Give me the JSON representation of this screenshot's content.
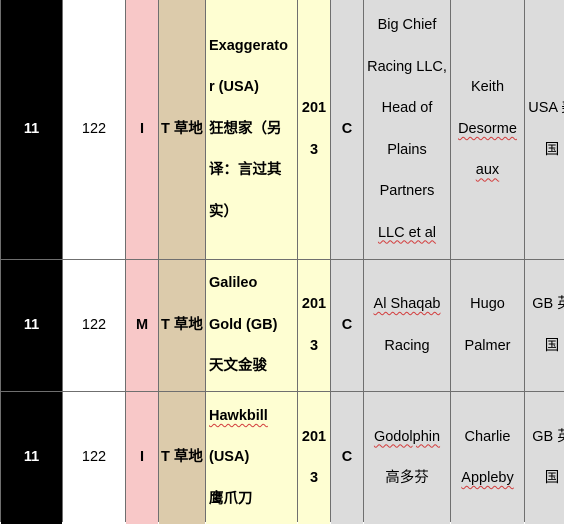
{
  "rows": [
    {
      "rank": "11",
      "rating": "122",
      "class_code": "I",
      "surface": "T 草地",
      "name_lines": [
        "Exaggerato",
        "r (USA)",
        "狂想家（另",
        "译：言过其",
        "实）"
      ],
      "year_lines": [
        "201",
        "3"
      ],
      "sex": "C",
      "owner_lines": [
        "Big Chief",
        "Racing LLC,",
        "Head of",
        "Plains",
        "Partners",
        "LLC et al"
      ],
      "trainer_lines": [
        "Keith",
        "Desorme",
        "aux"
      ],
      "country_lines": [
        "USA 美",
        "国"
      ]
    },
    {
      "rank": "11",
      "rating": "122",
      "class_code": "M",
      "surface": "T 草地",
      "name_lines": [
        "Galileo",
        "Gold (GB)",
        "天文金骏"
      ],
      "year_lines": [
        "201",
        "3"
      ],
      "sex": "C",
      "owner_lines": [
        "Al Shaqab",
        "Racing"
      ],
      "trainer_lines": [
        "Hugo",
        "Palmer"
      ],
      "country_lines": [
        "GB 英",
        "国"
      ]
    },
    {
      "rank": "11",
      "rating": "122",
      "class_code": "I",
      "surface": "T 草地",
      "name_lines": [
        "Hawkbill",
        "(USA)",
        "鹰爪刀"
      ],
      "year_lines": [
        "201",
        "3"
      ],
      "sex": "C",
      "owner_lines": [
        "Godolphin",
        "高多芬"
      ],
      "trainer_lines": [
        "Charlie",
        "Appleby"
      ],
      "country_lines": [
        "GB 英",
        "国"
      ]
    }
  ]
}
